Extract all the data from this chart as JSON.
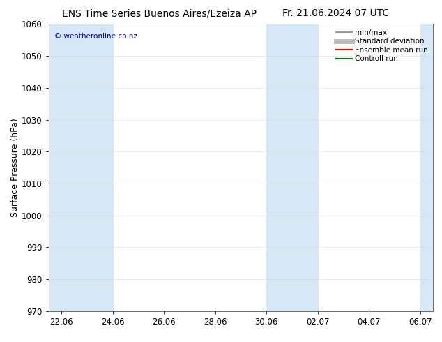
{
  "title_left": "ENS Time Series Buenos Aires/Ezeiza AP",
  "title_right": "Fr. 21.06.2024 07 UTC",
  "ylabel": "Surface Pressure (hPa)",
  "ylim": [
    970,
    1060
  ],
  "yticks": [
    970,
    980,
    990,
    1000,
    1010,
    1020,
    1030,
    1040,
    1050,
    1060
  ],
  "xlabels": [
    "22.06",
    "24.06",
    "26.06",
    "28.06",
    "30.06",
    "02.07",
    "04.07",
    "06.07"
  ],
  "xtick_positions": [
    0,
    2,
    4,
    6,
    8,
    10,
    12,
    14
  ],
  "xmin": -0.5,
  "xmax": 14.5,
  "band_color": "#d6e8f5",
  "bg_color": "#ffffff",
  "plot_bg_color": "#ffffff",
  "watermark": "© weatheronline.co.nz",
  "watermark_color": "#0000cc",
  "legend_items": [
    {
      "label": "min/max",
      "color": "#999999",
      "lw": 1.5
    },
    {
      "label": "Standard deviation",
      "color": "#bbbbbb",
      "lw": 5
    },
    {
      "label": "Ensemble mean run",
      "color": "#ff0000",
      "lw": 1.5
    },
    {
      "label": "Controll run",
      "color": "#008000",
      "lw": 1.5
    }
  ],
  "title_fontsize": 10,
  "tick_fontsize": 8.5,
  "ylabel_fontsize": 9
}
